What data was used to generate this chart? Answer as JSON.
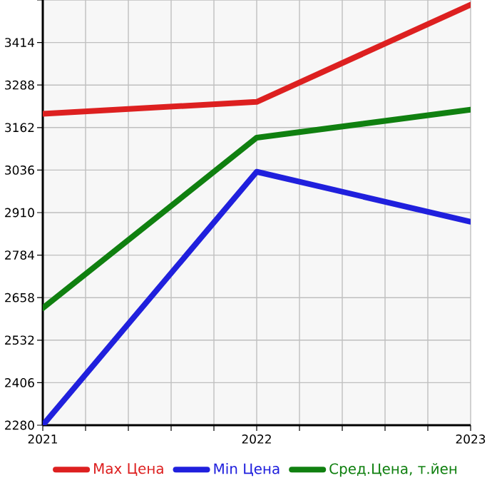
{
  "chart_data": {
    "type": "line",
    "x": [
      2021,
      2022,
      2023
    ],
    "series": [
      {
        "name": "Max Цена",
        "color": "#dd2020",
        "values": [
          3203,
          3238,
          3526
        ]
      },
      {
        "name": "Min Цена",
        "color": "#2020dd",
        "values": [
          2280,
          3031,
          2883
        ]
      },
      {
        "name": "Сред.Цена, т.йен",
        "color": "#108010",
        "values": [
          2627,
          3132,
          3215
        ]
      }
    ],
    "xlim": [
      2021,
      2023
    ],
    "xticks": [
      2021,
      {
        "value": 2021.2,
        "label": null
      },
      {
        "value": 2021.4,
        "label": null
      },
      {
        "value": 2021.6,
        "label": null
      },
      {
        "value": 2021.8,
        "label": null
      },
      2022,
      {
        "value": 2022.2,
        "label": null
      },
      {
        "value": 2022.4,
        "label": null
      },
      {
        "value": 2022.6,
        "label": null
      },
      {
        "value": 2022.8,
        "label": null
      },
      2023
    ],
    "ylim": [
      2280,
      3540
    ],
    "yticks": [
      2280,
      2406,
      2532,
      2658,
      2784,
      2910,
      3036,
      3162,
      3288,
      3414,
      {
        "value": 3540,
        "label": null
      }
    ],
    "grid": true,
    "legend": "bottom",
    "line_style": "solid"
  }
}
